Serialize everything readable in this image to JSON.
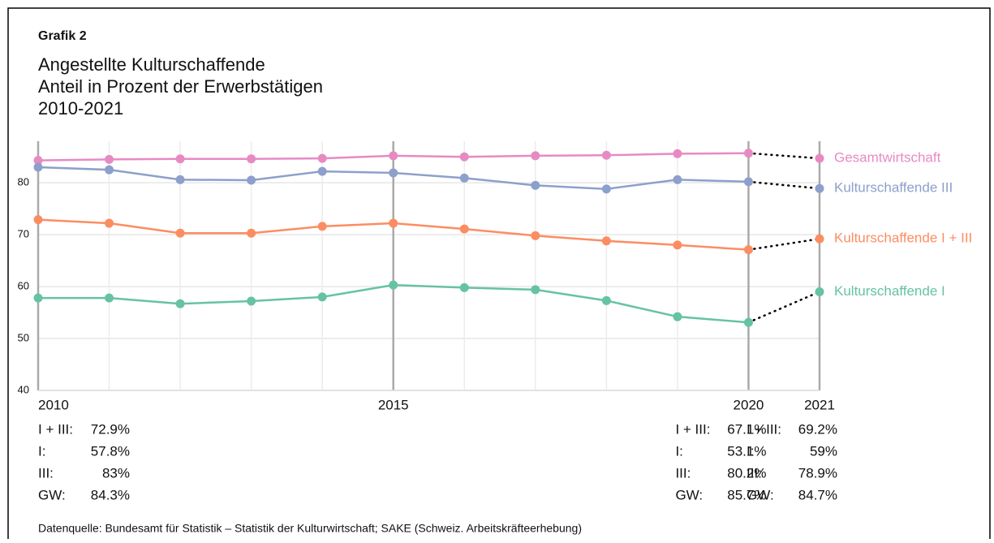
{
  "chart_data": {
    "type": "line",
    "heading": "Grafik 2",
    "title_lines": [
      "Angestellte Kulturschaffende",
      "Anteil in Prozent der Erwerbstätigen",
      "2010-2021"
    ],
    "x": [
      2010,
      2011,
      2012,
      2013,
      2014,
      2015,
      2016,
      2017,
      2018,
      2019,
      2020,
      2021
    ],
    "xlim": [
      2010,
      2021
    ],
    "xticks": [
      2010,
      2015,
      2020,
      2021
    ],
    "ylim": [
      40,
      88
    ],
    "yticks": [
      40,
      50,
      60,
      70,
      80
    ],
    "grid": true,
    "dotted_last_segment": true,
    "series": [
      {
        "name": "Gesamtwirtschaft",
        "color": "#e78ac3",
        "values": [
          84.3,
          84.5,
          84.6,
          84.6,
          84.7,
          85.2,
          85.0,
          85.2,
          85.3,
          85.6,
          85.7,
          84.7
        ]
      },
      {
        "name": "Kulturschaffende III",
        "color": "#8da0cb",
        "values": [
          83,
          82.5,
          80.6,
          80.5,
          82.2,
          81.9,
          80.9,
          79.5,
          78.8,
          80.6,
          80.2,
          78.9
        ]
      },
      {
        "name": "Kulturschaffende I + III",
        "color": "#fc8d62",
        "values": [
          72.9,
          72.2,
          70.3,
          70.3,
          71.6,
          72.2,
          71.1,
          69.8,
          68.8,
          68.0,
          67.1,
          69.2
        ]
      },
      {
        "name": "Kulturschaffende I",
        "color": "#66c2a5",
        "values": [
          57.8,
          57.8,
          56.7,
          57.2,
          58.0,
          60.3,
          59.8,
          59.4,
          57.3,
          54.2,
          53.1,
          59
        ]
      }
    ],
    "annotations": [
      {
        "x": 2010,
        "rows": [
          {
            "label": "I + III:",
            "value": "72.9%"
          },
          {
            "label": "I:",
            "value": "57.8%"
          },
          {
            "label": "III:",
            "value": "83%"
          },
          {
            "label": "GW:",
            "value": "84.3%"
          }
        ]
      },
      {
        "x": 2020,
        "rows": [
          {
            "label": "I + III:",
            "value": "67.1%"
          },
          {
            "label": "I:",
            "value": "53.1%"
          },
          {
            "label": "III:",
            "value": "80.2%"
          },
          {
            "label": "GW:",
            "value": "85.7%"
          }
        ]
      },
      {
        "x": 2021,
        "rows": [
          {
            "label": "I + III:",
            "value": "69.2%"
          },
          {
            "label": "I:",
            "value": "59%"
          },
          {
            "label": "III:",
            "value": "78.9%"
          },
          {
            "label": "GW:",
            "value": "84.7%"
          }
        ]
      }
    ],
    "source": "Datenquelle: Bundesamt für Statistik – Statistik der Kulturwirtschaft; SAKE (Schweiz. Arbeitskräfteerhebung)"
  }
}
